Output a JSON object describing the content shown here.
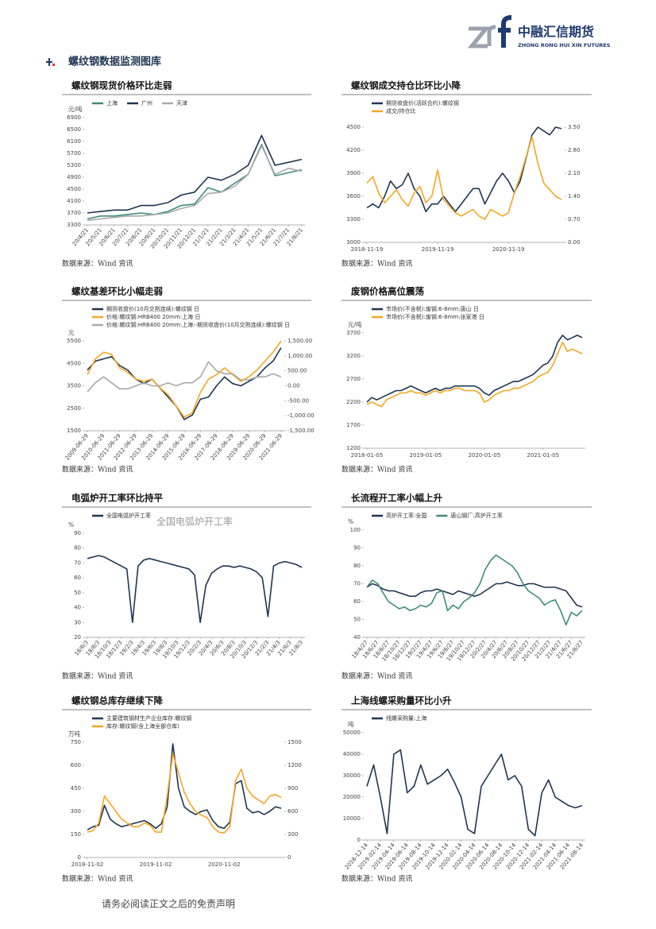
{
  "header": {
    "company": "中融汇信期货",
    "company_en": "ZHONG RONG HUI XIN FUTURES",
    "section": "螺纹钢数据监测图库"
  },
  "chart_data": [
    {
      "type": "line",
      "title": "螺纹钢现货价格环比走弱",
      "unit": "元/吨",
      "source": "数据来源：Wind 资讯",
      "categories": [
        "20/4/21",
        "20/5/21",
        "20/6/21",
        "20/7/21",
        "20/8/21",
        "20/9/21",
        "20/10/21",
        "20/11/21",
        "20/12/21",
        "21/1/21",
        "21/2/21",
        "21/3/21",
        "21/4/21",
        "21/5/21",
        "21/6/21",
        "21/7/21",
        "21/8/21"
      ],
      "series": [
        {
          "name": "上海",
          "color": "#3d8b7b",
          "values": [
            3500,
            3600,
            3600,
            3650,
            3700,
            3650,
            3750,
            3950,
            4000,
            4550,
            4400,
            4700,
            5000,
            6000,
            4950,
            5050,
            5150
          ]
        },
        {
          "name": "广州",
          "color": "#1e3550",
          "values": [
            3700,
            3750,
            3800,
            3800,
            3950,
            3950,
            4050,
            4300,
            4400,
            4900,
            4800,
            5000,
            5300,
            6300,
            5300,
            5400,
            5500
          ]
        },
        {
          "name": "天津",
          "color": "#a8a8a8",
          "values": [
            3450,
            3500,
            3550,
            3600,
            3600,
            3650,
            3700,
            3850,
            3950,
            4350,
            4400,
            4600,
            5000,
            5950,
            5000,
            5200,
            5100
          ]
        }
      ],
      "ylim": [
        3300,
        6900
      ],
      "yticks": [
        3300,
        3700,
        4100,
        4500,
        4900,
        5300,
        5700,
        6100,
        6500,
        6900
      ]
    },
    {
      "type": "line",
      "title": "螺纹钢成交持仓比环比小降",
      "source": "数据来源：Wind 资讯",
      "categories": [
        "2018-11-19",
        null,
        null,
        null,
        null,
        null,
        null,
        null,
        null,
        null,
        null,
        null,
        "2019-11-19",
        null,
        null,
        null,
        null,
        null,
        null,
        null,
        null,
        null,
        null,
        null,
        "2020-11-19",
        null,
        null,
        null,
        null,
        null,
        null,
        null,
        null,
        null
      ],
      "series": [
        {
          "name": "期货收盘价(活跃合约):螺纹钢",
          "color": "#1e3550",
          "values": [
            3450,
            3500,
            3450,
            3600,
            3800,
            3700,
            3750,
            3900,
            3700,
            3600,
            3400,
            3500,
            3500,
            3600,
            3500,
            3400,
            3500,
            3600,
            3700,
            3700,
            3500,
            3650,
            3800,
            3900,
            3800,
            3650,
            3800,
            4100,
            4400,
            4500,
            4450,
            4400,
            4500,
            4480
          ]
        },
        {
          "name": "成交/持仓比",
          "color": "#f5a623",
          "axis": "y2",
          "values": [
            1.8,
            2.0,
            1.5,
            1.2,
            1.4,
            1.6,
            1.3,
            1.1,
            1.5,
            1.7,
            1.2,
            1.4,
            2.2,
            1.3,
            1.1,
            0.9,
            0.8,
            0.9,
            1.0,
            0.8,
            0.7,
            1.0,
            0.9,
            0.8,
            0.9,
            1.5,
            2.0,
            2.6,
            3.2,
            2.4,
            1.8,
            1.6,
            1.4,
            1.3
          ]
        }
      ],
      "ylim": [
        3000,
        4500
      ],
      "yticks": [
        3000,
        3300,
        3600,
        3900,
        4200,
        4500
      ],
      "y2lim": [
        0,
        3.5
      ],
      "y2ticks": [
        {
          "value": 0,
          "label": "0.00"
        },
        {
          "value": 0.7,
          "label": "0.70"
        },
        {
          "value": 1.4,
          "label": "1.40"
        },
        {
          "value": 2.1,
          "label": "2.10"
        },
        {
          "value": 2.8,
          "label": "2.80"
        },
        {
          "value": 3.5,
          "label": "3.50"
        }
      ]
    },
    {
      "type": "line",
      "title": "螺纹基差环比小幅走弱",
      "unit": "元",
      "source": "数据来源：Wind 资讯",
      "categories": [
        "2009-06-29",
        null,
        "2010-06-29",
        null,
        "2011-06-29",
        null,
        "2012-06-29",
        null,
        "2013-06-29",
        null,
        "2014-06-29",
        null,
        "2015-06-29",
        null,
        "2016-06-29",
        null,
        "2017-06-29",
        null,
        "2018-06-29",
        null,
        "2019-06-29",
        null,
        "2020-06-29",
        null,
        "2021-06-29"
      ],
      "series": [
        {
          "name": "期货收盘价(10月交割连续):螺纹钢 日",
          "color": "#1e3550",
          "values": [
            4200,
            4600,
            4700,
            4800,
            4400,
            4200,
            3800,
            3600,
            3800,
            3400,
            3000,
            2600,
            2000,
            2200,
            2900,
            3000,
            3500,
            3900,
            3600,
            3500,
            3700,
            3900,
            4300,
            4600,
            5200
          ]
        },
        {
          "name": "价格:螺纹钢:HRB400 20mm:上海 日",
          "color": "#f5a623",
          "values": [
            4000,
            4700,
            5000,
            4900,
            4300,
            4100,
            3800,
            3700,
            3800,
            3400,
            3100,
            2600,
            2100,
            2300,
            3200,
            3800,
            4000,
            4300,
            4000,
            3700,
            3900,
            4200,
            4600,
            5000,
            5500
          ]
        },
        {
          "name": "价格:螺纹钢:HRB400 20mm:上海:-期货收盘价(10月交割连续):螺纹钢 日",
          "color": "#a8a8a8",
          "axis": "y2",
          "values": [
            -200,
            100,
            300,
            100,
            -100,
            -100,
            0,
            100,
            0,
            0,
            100,
            0,
            100,
            100,
            300,
            800,
            500,
            400,
            400,
            200,
            200,
            300,
            300,
            400,
            300
          ]
        }
      ],
      "ylim": [
        1500,
        5500
      ],
      "yticks": [
        1500,
        2500,
        3500,
        4500,
        5500
      ],
      "y2lim": [
        -1500,
        1500
      ],
      "y2ticks": [
        {
          "value": -1500,
          "label": "-1,500.00"
        },
        {
          "value": -1000,
          "label": "-1,000.00"
        },
        {
          "value": -500,
          "label": "-500.00"
        },
        {
          "value": 0,
          "label": "0.00"
        },
        {
          "value": 500,
          "label": "500.00"
        },
        {
          "value": 1000,
          "label": "1,000.00"
        },
        {
          "value": 1500,
          "label": "1,500.00"
        }
      ]
    },
    {
      "type": "line",
      "title": "废钢价格高位震荡",
      "unit": "元/吨",
      "source": "数据来源：Wind 资讯",
      "categories": [
        "2018-01-05",
        null,
        null,
        null,
        null,
        null,
        null,
        null,
        null,
        null,
        null,
        null,
        "2019-01-05",
        null,
        null,
        null,
        null,
        null,
        null,
        null,
        null,
        null,
        null,
        null,
        "2020-01-05",
        null,
        null,
        null,
        null,
        null,
        null,
        null,
        null,
        null,
        null,
        null,
        "2021-01-05",
        null,
        null,
        null,
        null,
        null,
        null,
        null,
        null
      ],
      "series": [
        {
          "name": "市场价(不含税):废钢:6-8mm:唐山 日",
          "color": "#1e3550",
          "values": [
            2200,
            2300,
            2250,
            2300,
            2350,
            2400,
            2450,
            2450,
            2500,
            2550,
            2500,
            2450,
            2400,
            2450,
            2500,
            2450,
            2500,
            2500,
            2550,
            2550,
            2550,
            2550,
            2550,
            2500,
            2400,
            2350,
            2450,
            2500,
            2550,
            2600,
            2650,
            2650,
            2700,
            2750,
            2800,
            2900,
            3000,
            3050,
            3200,
            3500,
            3650,
            3550,
            3600,
            3650,
            3600
          ]
        },
        {
          "name": "市场价(不含税):废钢:6-8mm:张家港 日",
          "color": "#f5a623",
          "values": [
            2150,
            2200,
            2150,
            2100,
            2250,
            2300,
            2350,
            2400,
            2400,
            2450,
            2400,
            2400,
            2350,
            2400,
            2450,
            2400,
            2450,
            2450,
            2500,
            2500,
            2450,
            2450,
            2450,
            2400,
            2200,
            2250,
            2350,
            2400,
            2450,
            2450,
            2500,
            2500,
            2550,
            2600,
            2650,
            2750,
            2800,
            2850,
            3000,
            3250,
            3500,
            3300,
            3350,
            3300,
            3250
          ]
        }
      ],
      "ylim": [
        1200,
        3700
      ],
      "yticks": [
        1200,
        1700,
        2200,
        2700,
        3200,
        3700
      ]
    },
    {
      "type": "line",
      "title": "电弧炉开工率环比持平",
      "inner_title": "全国电弧炉开工率",
      "unit": "%",
      "source": "数据来源：Wind 资讯",
      "categories": [
        "18/6/3",
        null,
        "18/8/3",
        null,
        "18/10/3",
        null,
        "18/12/3",
        null,
        "19/2/3",
        null,
        "19/4/3",
        null,
        "19/6/3",
        null,
        "19/8/3",
        null,
        "19/10/3",
        null,
        "19/12/3",
        null,
        "20/2/3",
        null,
        "20/4/3",
        null,
        "20/6/3",
        null,
        "20/8/3",
        null,
        "20/10/3",
        null,
        "20/12/3",
        null,
        "21/2/3",
        null,
        "21/4/3",
        null,
        "21/6/3",
        null,
        "21/8/3"
      ],
      "series": [
        {
          "name": "全国电弧炉开工率",
          "color": "#1e3550",
          "values": [
            73,
            74,
            75,
            74,
            72,
            70,
            68,
            66,
            30,
            68,
            72,
            73,
            72,
            71,
            70,
            69,
            68,
            67,
            66,
            62,
            30,
            55,
            63,
            66,
            68,
            68,
            67,
            68,
            67,
            66,
            64,
            60,
            34,
            68,
            70,
            71,
            70,
            69,
            67
          ]
        }
      ],
      "ylim": [
        20,
        90
      ],
      "yticks": [
        20,
        30,
        40,
        50,
        60,
        70,
        80,
        90
      ]
    },
    {
      "type": "line",
      "title": "长流程开工率小幅上升",
      "unit": "%",
      "source": "数据来源：Wind 资讯",
      "categories": [
        "18/4/27",
        null,
        "18/6/27",
        null,
        "18/8/27",
        null,
        "18/10/27",
        null,
        "18/12/27",
        null,
        "19/2/27",
        null,
        "19/4/27",
        null,
        "19/6/27",
        null,
        "19/8/27",
        null,
        "19/10/27",
        null,
        "19/12/27",
        null,
        "20/2/27",
        null,
        "20/4/27",
        null,
        "20/6/27",
        null,
        "20/8/27",
        null,
        "20/10/27",
        null,
        "20/12/27",
        null,
        "21/2/27",
        null,
        "21/4/27",
        null,
        "21/6/27",
        null,
        "21/8/27"
      ],
      "series": [
        {
          "name": "高炉开工率:全国",
          "color": "#1e3550",
          "values": [
            68,
            70,
            69,
            67,
            66,
            66,
            65,
            64,
            63,
            63,
            65,
            66,
            66,
            67,
            66,
            65,
            64,
            66,
            65,
            64,
            63,
            64,
            66,
            68,
            70,
            70,
            71,
            70,
            69,
            69,
            70,
            70,
            69,
            68,
            68,
            68,
            67,
            66,
            62,
            58,
            57
          ]
        },
        {
          "name": "唐山钢厂:高炉开工率",
          "color": "#3d8b7b",
          "values": [
            68,
            72,
            70,
            65,
            60,
            58,
            56,
            57,
            55,
            56,
            58,
            57,
            59,
            65,
            66,
            55,
            58,
            56,
            60,
            62,
            65,
            70,
            78,
            83,
            86,
            84,
            82,
            80,
            76,
            70,
            66,
            64,
            62,
            58,
            60,
            61,
            55,
            47,
            54,
            52,
            55
          ]
        }
      ],
      "ylim": [
        40,
        100
      ],
      "yticks": [
        40,
        50,
        60,
        70,
        80,
        90,
        100
      ]
    },
    {
      "type": "line",
      "title": "螺纹钢总库存继续下降",
      "unit": "万吨",
      "source": "数据来源：Wind 资讯",
      "categories": [
        "2018-11-02",
        null,
        null,
        null,
        null,
        null,
        null,
        null,
        null,
        null,
        null,
        null,
        "2019-11-02",
        null,
        null,
        null,
        null,
        null,
        null,
        null,
        null,
        null,
        null,
        null,
        "2020-11-02",
        null,
        null,
        null,
        null,
        null,
        null,
        null,
        null,
        null,
        null
      ],
      "series": [
        {
          "name": "主要建筑钢材生产企业库存:螺纹钢",
          "color": "#1e3550",
          "values": [
            180,
            200,
            210,
            340,
            250,
            220,
            200,
            210,
            220,
            230,
            240,
            220,
            190,
            220,
            330,
            740,
            450,
            330,
            300,
            280,
            300,
            310,
            240,
            200,
            190,
            230,
            480,
            500,
            320,
            290,
            300,
            280,
            300,
            330,
            320
          ]
        },
        {
          "name": "库存:螺纹钢(含上海全部仓库)",
          "color": "#f5a623",
          "axis": "y2",
          "values": [
            330,
            350,
            450,
            800,
            700,
            600,
            500,
            450,
            400,
            400,
            450,
            420,
            330,
            330,
            800,
            1350,
            1100,
            850,
            700,
            600,
            550,
            520,
            400,
            330,
            320,
            400,
            1000,
            1150,
            900,
            800,
            750,
            700,
            800,
            820,
            780
          ]
        }
      ],
      "ylim": [
        0,
        750
      ],
      "yticks": [
        0,
        150,
        300,
        450,
        600,
        750
      ],
      "y2lim": [
        0,
        1500
      ],
      "y2ticks": [
        0,
        300,
        600,
        900,
        1200,
        1500
      ]
    },
    {
      "type": "line",
      "title": "上海线螺采购量环比小升",
      "unit": "吨",
      "source": "数据来源：Wind 资讯",
      "categories": [
        "2018-12-14",
        null,
        "2019-02-14",
        null,
        "2019-04-14",
        null,
        "2019-06-14",
        null,
        "2019-08-14",
        null,
        "2019-10-14",
        null,
        "2019-12-14",
        null,
        "2020-02-14",
        null,
        "2020-04-14",
        null,
        "2020-06-14",
        null,
        "2020-08-14",
        null,
        "2020-10-14",
        null,
        "2020-12-14",
        null,
        "2021-02-14",
        null,
        "2021-04-14",
        null,
        "2021-06-14",
        null,
        "2021-08-14"
      ],
      "series": [
        {
          "name": "线螺采购量:上海",
          "color": "#1e3550",
          "values": [
            25000,
            35000,
            20000,
            3000,
            40000,
            42000,
            22000,
            25000,
            35000,
            26000,
            28000,
            30000,
            33000,
            27000,
            20000,
            5000,
            3000,
            25000,
            30000,
            35000,
            40000,
            28000,
            30000,
            25000,
            5000,
            2000,
            22000,
            28000,
            20000,
            18000,
            16000,
            15000,
            16000
          ]
        }
      ],
      "ylim": [
        0,
        50000
      ],
      "yticks": [
        0,
        10000,
        20000,
        30000,
        40000,
        50000
      ]
    }
  ],
  "footer": "请务必阅读正文之后的免责声明"
}
